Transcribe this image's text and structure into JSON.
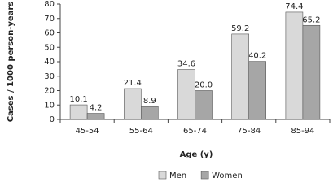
{
  "chart_data": {
    "type": "bar",
    "y_label": "Cases / 1000 person-years",
    "x_label": "Age (y)",
    "categories": [
      "45-54",
      "55-64",
      "65-74",
      "75-84",
      "85-94"
    ],
    "series": [
      {
        "name": "Men",
        "color": "#d9d9d9",
        "values": [
          10.1,
          21.4,
          34.6,
          59.2,
          74.4
        ],
        "value_labels": [
          "10.1",
          "21.4",
          "34.6",
          "59.2",
          "74.4"
        ]
      },
      {
        "name": "Women",
        "color": "#a6a6a6",
        "values": [
          4.2,
          8.9,
          20.0,
          40.2,
          65.2
        ],
        "value_labels": [
          "4.2",
          "8.9",
          "20.0",
          "40.2",
          "65.2"
        ]
      }
    ],
    "ylim": [
      0,
      80
    ],
    "yticks": [
      0,
      10,
      20,
      30,
      40,
      50,
      60,
      70,
      80
    ],
    "legend": "bottom"
  }
}
